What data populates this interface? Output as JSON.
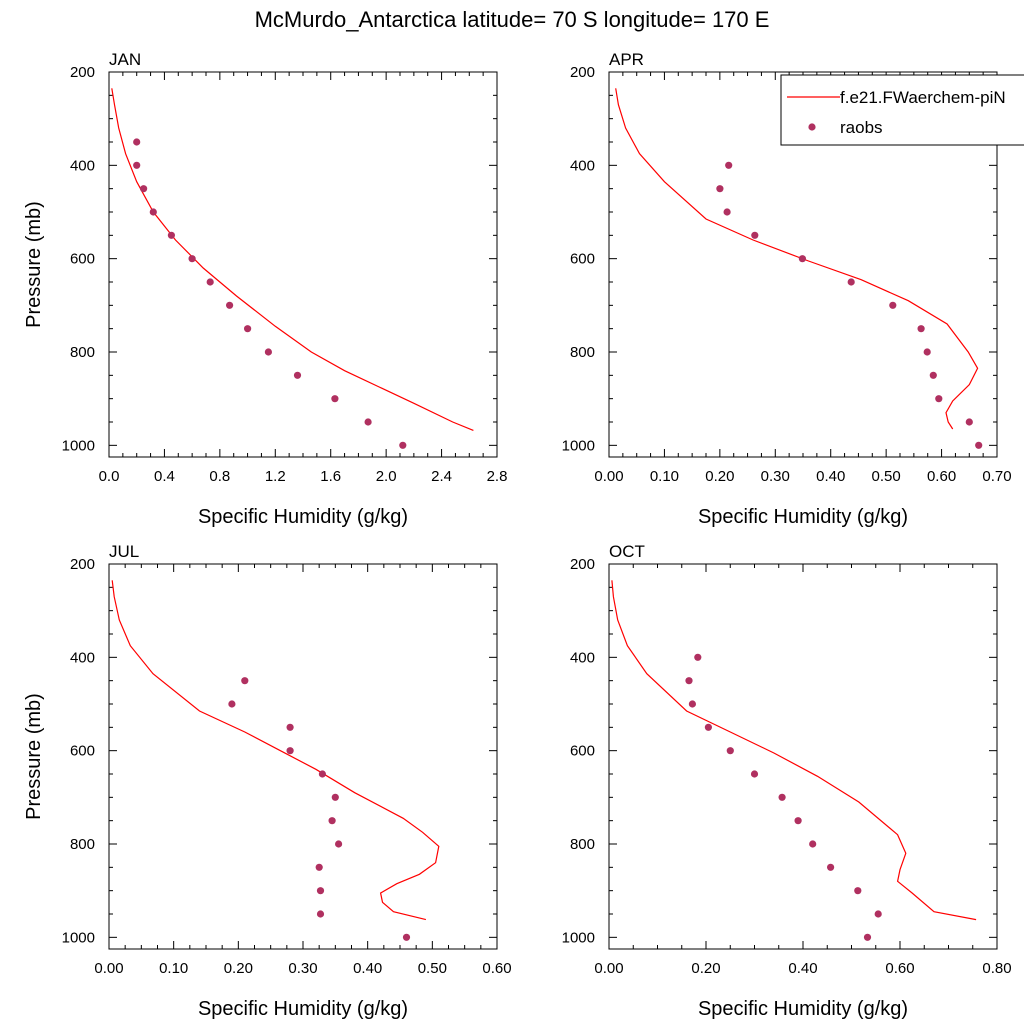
{
  "page": {
    "title": "McMurdo_Antarctica  latitude= 70 S longitude= 170 E"
  },
  "legend": {
    "model_label": "f.e21.FWaerchem-piN",
    "obs_label": "raobs"
  },
  "colors": {
    "model_line": "#ff0000",
    "obs_marker": "#b03060",
    "axes": "#000000"
  },
  "chart_data": [
    {
      "type": "line",
      "panel": "JAN",
      "title": "JAN",
      "xlabel": "Specific Humidity (g/kg)",
      "ylabel": "Pressure (mb)",
      "xlim": [
        0,
        2.8
      ],
      "ylim": [
        1025,
        200
      ],
      "y_inverted": true,
      "xticks": [
        0,
        0.4,
        0.8,
        1.2,
        1.6,
        2.0,
        2.4,
        2.8
      ],
      "xtick_labels": [
        "0.0",
        "0.4",
        "0.8",
        "1.2",
        "1.6",
        "2.0",
        "2.4",
        "2.8"
      ],
      "yticks": [
        200,
        400,
        600,
        800,
        1000
      ],
      "ytick_labels": [
        "200",
        "400",
        "600",
        "800",
        "1000"
      ],
      "series": [
        {
          "name": "f.e21.FWaerchem-piN",
          "kind": "line",
          "x": [
            0.02,
            0.04,
            0.07,
            0.12,
            0.2,
            0.32,
            0.48,
            0.68,
            0.92,
            1.2,
            1.46,
            1.7,
            1.95,
            2.2,
            2.48,
            2.63
          ],
          "y": [
            235,
            270,
            320,
            375,
            435,
            500,
            560,
            620,
            680,
            745,
            800,
            840,
            875,
            910,
            950,
            968
          ]
        },
        {
          "name": "raobs",
          "kind": "scatter",
          "x": [
            0.2,
            0.2,
            0.25,
            0.32,
            0.45,
            0.6,
            0.73,
            0.87,
            1.0,
            1.15,
            1.36,
            1.63,
            1.87,
            2.12
          ],
          "y": [
            350,
            400,
            450,
            500,
            550,
            600,
            650,
            700,
            750,
            800,
            850,
            900,
            950,
            1000
          ]
        }
      ]
    },
    {
      "type": "line",
      "panel": "APR",
      "title": "APR",
      "xlabel": "Specific Humidity (g/kg)",
      "ylabel": "",
      "xlim": [
        0,
        0.7
      ],
      "ylim": [
        1025,
        200
      ],
      "y_inverted": true,
      "xticks": [
        0,
        0.1,
        0.2,
        0.3,
        0.4,
        0.5,
        0.6,
        0.7
      ],
      "xtick_labels": [
        "0.00",
        "0.10",
        "0.20",
        "0.30",
        "0.40",
        "0.50",
        "0.60",
        "0.70"
      ],
      "yticks": [
        200,
        400,
        600,
        800,
        1000
      ],
      "ytick_labels": [
        "200",
        "400",
        "600",
        "800",
        "1000"
      ],
      "series": [
        {
          "name": "f.e21.FWaerchem-piN",
          "kind": "line",
          "x": [
            0.012,
            0.017,
            0.03,
            0.055,
            0.1,
            0.175,
            0.26,
            0.36,
            0.455,
            0.54,
            0.61,
            0.648,
            0.665,
            0.65,
            0.62,
            0.608,
            0.612,
            0.62
          ],
          "y": [
            235,
            270,
            320,
            375,
            435,
            515,
            560,
            605,
            645,
            690,
            740,
            800,
            835,
            870,
            905,
            930,
            950,
            965
          ]
        },
        {
          "name": "raobs",
          "kind": "scatter",
          "x": [
            0.216,
            0.2,
            0.213,
            0.263,
            0.349,
            0.437,
            0.512,
            0.563,
            0.574,
            0.585,
            0.595,
            0.65,
            0.667
          ],
          "y": [
            400,
            450,
            500,
            550,
            600,
            650,
            700,
            750,
            800,
            850,
            900,
            950,
            1000
          ]
        }
      ]
    },
    {
      "type": "line",
      "panel": "JUL",
      "title": "JUL",
      "xlabel": "Specific Humidity (g/kg)",
      "ylabel": "Pressure (mb)",
      "xlim": [
        0,
        0.6
      ],
      "ylim": [
        1025,
        200
      ],
      "y_inverted": true,
      "xticks": [
        0,
        0.1,
        0.2,
        0.3,
        0.4,
        0.5,
        0.6
      ],
      "xtick_labels": [
        "0.00",
        "0.10",
        "0.20",
        "0.30",
        "0.40",
        "0.50",
        "0.60"
      ],
      "yticks": [
        200,
        400,
        600,
        800,
        1000
      ],
      "ytick_labels": [
        "200",
        "400",
        "600",
        "800",
        "1000"
      ],
      "series": [
        {
          "name": "f.e21.FWaerchem-piN",
          "kind": "line",
          "x": [
            0.005,
            0.008,
            0.016,
            0.033,
            0.068,
            0.14,
            0.21,
            0.265,
            0.32,
            0.38,
            0.455,
            0.485,
            0.51,
            0.505,
            0.48,
            0.445,
            0.42,
            0.423,
            0.44,
            0.49
          ],
          "y": [
            235,
            270,
            320,
            375,
            435,
            515,
            560,
            600,
            640,
            690,
            745,
            775,
            805,
            840,
            865,
            885,
            905,
            925,
            945,
            962
          ]
        },
        {
          "name": "raobs",
          "kind": "scatter",
          "x": [
            0.21,
            0.19,
            0.28,
            0.28,
            0.33,
            0.35,
            0.345,
            0.355,
            0.325,
            0.327,
            0.327,
            0.46
          ],
          "y": [
            450,
            500,
            550,
            600,
            650,
            700,
            750,
            800,
            850,
            900,
            950,
            1000
          ]
        }
      ]
    },
    {
      "type": "line",
      "panel": "OCT",
      "title": "OCT",
      "xlabel": "Specific Humidity (g/kg)",
      "ylabel": "",
      "xlim": [
        0,
        0.8
      ],
      "ylim": [
        1025,
        200
      ],
      "y_inverted": true,
      "xticks": [
        0,
        0.2,
        0.4,
        0.6,
        0.8
      ],
      "xtick_labels": [
        "0.00",
        "0.20",
        "0.40",
        "0.60",
        "0.80"
      ],
      "yticks": [
        200,
        400,
        600,
        800,
        1000
      ],
      "ytick_labels": [
        "200",
        "400",
        "600",
        "800",
        "1000"
      ],
      "series": [
        {
          "name": "f.e21.FWaerchem-piN",
          "kind": "line",
          "x": [
            0.006,
            0.009,
            0.018,
            0.038,
            0.078,
            0.16,
            0.25,
            0.34,
            0.43,
            0.515,
            0.595,
            0.612,
            0.6,
            0.595,
            0.625,
            0.67,
            0.757
          ],
          "y": [
            235,
            270,
            320,
            375,
            435,
            515,
            560,
            605,
            655,
            710,
            780,
            820,
            855,
            880,
            905,
            945,
            962
          ]
        },
        {
          "name": "raobs",
          "kind": "scatter",
          "x": [
            0.183,
            0.165,
            0.172,
            0.205,
            0.25,
            0.3,
            0.357,
            0.39,
            0.42,
            0.457,
            0.513,
            0.555,
            0.533
          ],
          "y": [
            400,
            450,
            500,
            550,
            600,
            650,
            700,
            750,
            800,
            850,
            900,
            950,
            1000
          ]
        }
      ]
    }
  ]
}
